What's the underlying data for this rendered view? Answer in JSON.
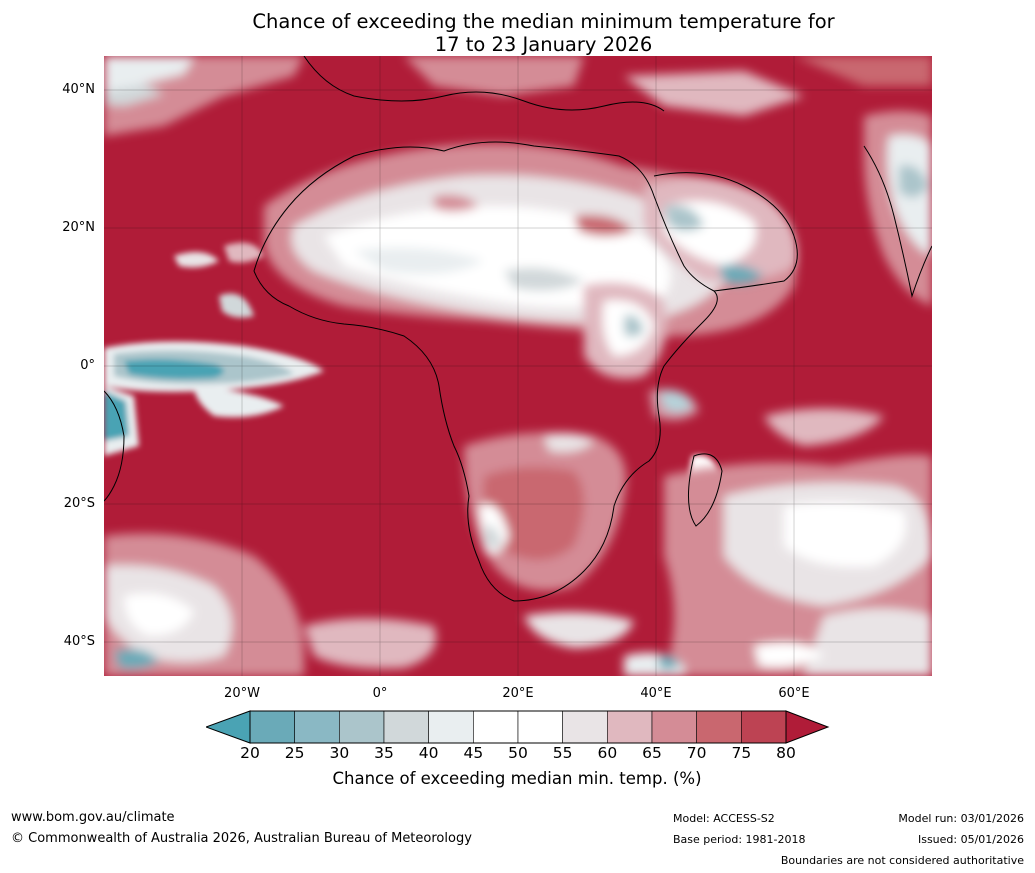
{
  "title": {
    "line1": "Chance of exceeding the median minimum temperature for",
    "line2": "17 to 23 January 2026"
  },
  "axes": {
    "lat_labels": [
      "40°N",
      "20°N",
      "0°",
      "20°S",
      "40°S"
    ],
    "lon_labels": [
      "20°W",
      "0°",
      "20°E",
      "40°E",
      "60°E"
    ]
  },
  "colorbar": {
    "ticks": [
      "20",
      "25",
      "30",
      "35",
      "40",
      "45",
      "50",
      "55",
      "60",
      "65",
      "70",
      "75",
      "80"
    ],
    "colors": [
      "#4aa3b4",
      "#6aaab8",
      "#8ab8c4",
      "#abc5cb",
      "#d1d8da",
      "#e9eef0",
      "#ffffff",
      "#ffffff",
      "#e9e4e6",
      "#e0b8bf",
      "#d48c96",
      "#c9676f",
      "#bd4353",
      "#b01c38"
    ],
    "label": "Chance of exceeding median min. temp. (%)"
  },
  "footer": {
    "website": "www.bom.gov.au/climate",
    "copyright": "© Commonwealth of Australia 2026, Australian Bureau of Meteorology",
    "model": "Model: ACCESS-S2",
    "base_period": "Base period: 1981-2018",
    "model_run": "Model run: 03/01/2026",
    "issued": "Issued: 05/01/2026",
    "disclaimer": "Boundaries are not considered authoritative"
  }
}
